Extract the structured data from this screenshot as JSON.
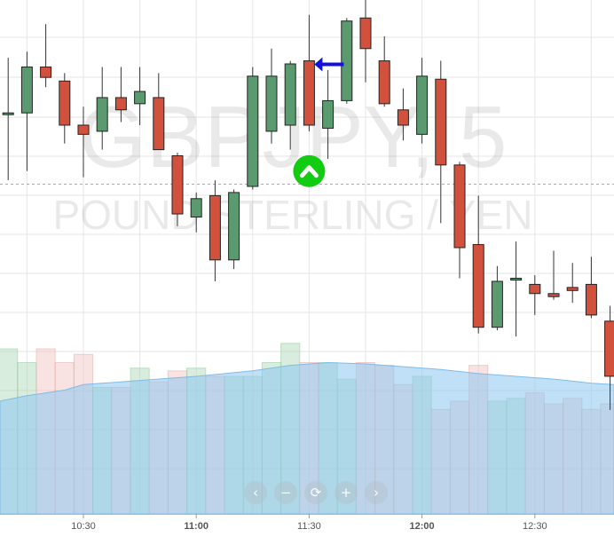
{
  "watermark": {
    "symbol": "GBPJPY, 5",
    "description": "POUND STERLING / YEN"
  },
  "chart_data": [
    {
      "type": "candlestick",
      "interval": "5 minutes",
      "x_axis": {
        "tick_labels": [
          "10:30",
          "11:00",
          "11:30",
          "12:00",
          "12:30"
        ],
        "bold_ticks": [
          "11:00",
          "12:00"
        ]
      },
      "grid": true,
      "price_lines": {
        "horizontal_dashed": true
      },
      "colors": {
        "up": "#5a9a6e",
        "down": "#d2513d",
        "wick": "#333333"
      },
      "candles": [
        {
          "time": "10:10",
          "open": 5.2,
          "high": 6.1,
          "low": 4.1,
          "close": 5.2
        },
        {
          "time": "10:15",
          "open": 5.2,
          "high": 6.2,
          "low": 4.25,
          "close": 5.95
        },
        {
          "time": "10:20",
          "open": 5.95,
          "high": 6.65,
          "low": 5.62,
          "close": 5.78
        },
        {
          "time": "10:25",
          "open": 5.72,
          "high": 5.85,
          "low": 4.7,
          "close": 5.0
        },
        {
          "time": "10:30",
          "open": 5.0,
          "high": 5.3,
          "low": 4.15,
          "close": 4.85
        },
        {
          "time": "10:35",
          "open": 4.9,
          "high": 5.95,
          "low": 4.6,
          "close": 5.45
        },
        {
          "time": "10:40",
          "open": 5.45,
          "high": 5.95,
          "low": 5.05,
          "close": 5.25
        },
        {
          "time": "10:45",
          "open": 5.35,
          "high": 5.95,
          "low": 5.0,
          "close": 5.55
        },
        {
          "time": "10:50",
          "open": 5.45,
          "high": 5.85,
          "low": 4.6,
          "close": 4.6
        },
        {
          "time": "10:55",
          "open": 4.5,
          "high": 4.55,
          "low": 3.35,
          "close": 3.55
        },
        {
          "time": "11:00",
          "open": 3.5,
          "high": 3.9,
          "low": 3.25,
          "close": 3.8
        },
        {
          "time": "11:05",
          "open": 3.85,
          "high": 4.1,
          "low": 2.45,
          "close": 2.8
        },
        {
          "time": "11:10",
          "open": 2.8,
          "high": 3.95,
          "low": 2.65,
          "close": 3.9
        },
        {
          "time": "11:15",
          "open": 4.0,
          "high": 5.95,
          "low": 3.95,
          "close": 5.8
        },
        {
          "time": "11:20",
          "open": 4.9,
          "high": 6.25,
          "low": 4.7,
          "close": 5.8
        },
        {
          "time": "11:25",
          "open": 5.0,
          "high": 6.05,
          "low": 4.6,
          "close": 6.0
        },
        {
          "time": "11:30",
          "open": 6.05,
          "high": 6.8,
          "low": 4.9,
          "close": 5.0
        },
        {
          "time": "11:35",
          "open": 4.95,
          "high": 5.9,
          "low": 4.45,
          "close": 5.4
        },
        {
          "time": "11:40",
          "open": 5.4,
          "high": 6.75,
          "low": 5.35,
          "close": 6.7
        },
        {
          "time": "11:45",
          "open": 6.75,
          "high": 7.45,
          "low": 5.7,
          "close": 6.25
        },
        {
          "time": "11:50",
          "open": 6.05,
          "high": 6.45,
          "low": 5.3,
          "close": 5.35
        },
        {
          "time": "11:55",
          "open": 5.25,
          "high": 5.6,
          "low": 4.75,
          "close": 5.0
        },
        {
          "time": "12:00",
          "open": 4.85,
          "high": 6.1,
          "low": 4.7,
          "close": 5.8
        },
        {
          "time": "12:05",
          "open": 5.75,
          "high": 6.05,
          "low": 3.4,
          "close": 4.35
        },
        {
          "time": "12:10",
          "open": 4.35,
          "high": 4.4,
          "low": 2.5,
          "close": 3.0
        },
        {
          "time": "12:15",
          "open": 3.05,
          "high": 3.85,
          "low": 1.6,
          "close": 1.7
        },
        {
          "time": "12:20",
          "open": 1.7,
          "high": 2.7,
          "low": 1.65,
          "close": 2.45
        },
        {
          "time": "12:25",
          "open": 2.5,
          "high": 3.1,
          "low": 1.55,
          "close": 2.5
        },
        {
          "time": "12:30",
          "open": 2.4,
          "high": 2.55,
          "low": 1.9,
          "close": 2.25
        },
        {
          "time": "12:35",
          "open": 2.25,
          "high": 2.95,
          "low": 2.15,
          "close": 2.2
        },
        {
          "time": "12:40",
          "open": 2.35,
          "high": 2.75,
          "low": 2.1,
          "close": 2.3
        },
        {
          "time": "12:45",
          "open": 2.4,
          "high": 2.85,
          "low": 1.85,
          "close": 1.9
        },
        {
          "time": "12:50",
          "open": 1.8,
          "high": 2.05,
          "low": 0.35,
          "close": 0.9
        }
      ],
      "volume": [
        {
          "time": "10:10",
          "value": 60
        },
        {
          "time": "10:15",
          "value": 55
        },
        {
          "time": "10:20",
          "value": 60
        },
        {
          "time": "10:25",
          "value": 55
        },
        {
          "time": "10:30",
          "value": 58
        },
        {
          "time": "10:35",
          "value": 46
        },
        {
          "time": "10:40",
          "value": 46
        },
        {
          "time": "10:45",
          "value": 53
        },
        {
          "time": "10:50",
          "value": 48
        },
        {
          "time": "10:55",
          "value": 52
        },
        {
          "time": "11:00",
          "value": 53
        },
        {
          "time": "11:05",
          "value": 50
        },
        {
          "time": "11:10",
          "value": 50
        },
        {
          "time": "11:15",
          "value": 50
        },
        {
          "time": "11:20",
          "value": 55
        },
        {
          "time": "11:25",
          "value": 62
        },
        {
          "time": "11:30",
          "value": 55
        },
        {
          "time": "11:35",
          "value": 55
        },
        {
          "time": "11:40",
          "value": 49
        },
        {
          "time": "11:45",
          "value": 55
        },
        {
          "time": "11:50",
          "value": 54
        },
        {
          "time": "11:55",
          "value": 47
        },
        {
          "time": "12:00",
          "value": 50
        },
        {
          "time": "12:05",
          "value": 38
        },
        {
          "time": "12:10",
          "value": 41
        },
        {
          "time": "12:15",
          "value": 54
        },
        {
          "time": "12:20",
          "value": 41
        },
        {
          "time": "12:25",
          "value": 42
        },
        {
          "time": "12:30",
          "value": 44
        },
        {
          "time": "12:35",
          "value": 40
        },
        {
          "time": "12:40",
          "value": 42
        },
        {
          "time": "12:45",
          "value": 38
        },
        {
          "time": "12:50",
          "value": 40
        }
      ],
      "volume_ma": [
        {
          "time": "10:05",
          "value": 41
        },
        {
          "time": "10:15",
          "value": 43
        },
        {
          "time": "10:25",
          "value": 45
        },
        {
          "time": "10:30",
          "value": 47
        },
        {
          "time": "10:45",
          "value": 48.5
        },
        {
          "time": "11:00",
          "value": 50
        },
        {
          "time": "11:15",
          "value": 52
        },
        {
          "time": "11:25",
          "value": 54
        },
        {
          "time": "11:35",
          "value": 55
        },
        {
          "time": "11:45",
          "value": 54.5
        },
        {
          "time": "11:55",
          "value": 53.5
        },
        {
          "time": "12:05",
          "value": 52.5
        },
        {
          "time": "12:15",
          "value": 51
        },
        {
          "time": "12:25",
          "value": 50
        },
        {
          "time": "12:35",
          "value": 49
        },
        {
          "time": "12:45",
          "value": 47.5
        },
        {
          "time": "12:55",
          "value": 47
        }
      ],
      "volume_colors": {
        "up": "#a9d8b3",
        "down": "#efc2be",
        "ma_fill": "#8cc6f0"
      },
      "markers": [
        {
          "type": "arrow-left",
          "time": "11:30",
          "price": 6.05,
          "color": "#1010dd"
        },
        {
          "type": "chevron-up-circle",
          "time": "11:30",
          "price": 4.25,
          "color": "#11cc11"
        }
      ]
    }
  ],
  "navigation": {
    "buttons": [
      {
        "name": "scroll-left-button",
        "glyph": "‹"
      },
      {
        "name": "zoom-out-button",
        "glyph": "−"
      },
      {
        "name": "reset-button",
        "glyph": "⟳"
      },
      {
        "name": "zoom-in-button",
        "glyph": "+"
      },
      {
        "name": "scroll-right-button",
        "glyph": "›"
      }
    ]
  }
}
